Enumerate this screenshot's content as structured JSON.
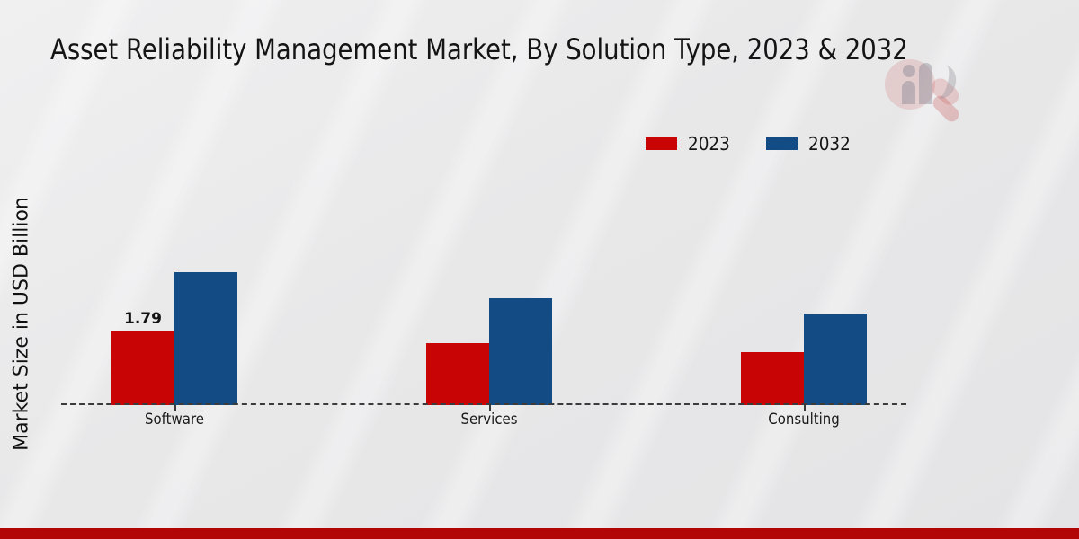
{
  "page": {
    "title": "Asset Reliability Management Market, By Solution Type, 2023 & 2032",
    "ylabel": "Market Size in USD Billion"
  },
  "legend": {
    "items": [
      {
        "label": "2023",
        "color": "#c90404"
      },
      {
        "label": "2032",
        "color": "#134b84"
      }
    ]
  },
  "colors": {
    "series_2023": "#c90404",
    "series_2032": "#134b84",
    "footer_band": "#b20505",
    "baseline": "#3b3b3b",
    "background": "#e8e8e9"
  },
  "chart_data": {
    "type": "bar",
    "title": "Asset Reliability Management Market, By Solution Type, 2023 & 2032",
    "xlabel": "",
    "ylabel": "Market Size in USD Billion",
    "categories": [
      "Software",
      "Services",
      "Consulting"
    ],
    "series": [
      {
        "name": "2023",
        "color": "#c90404",
        "values": [
          1.79,
          1.49,
          1.27
        ]
      },
      {
        "name": "2032",
        "color": "#134b84",
        "values": [
          3.19,
          2.57,
          2.2
        ]
      }
    ],
    "value_labels": [
      {
        "series": "2023",
        "category": "Software",
        "text": "1.79"
      }
    ],
    "ylim": [
      0,
      3.5
    ],
    "grid": false,
    "y_axis_ticks_shown": false,
    "legend_position": "upper-right",
    "baseline_style": "dashed",
    "units": "USD Billion"
  }
}
